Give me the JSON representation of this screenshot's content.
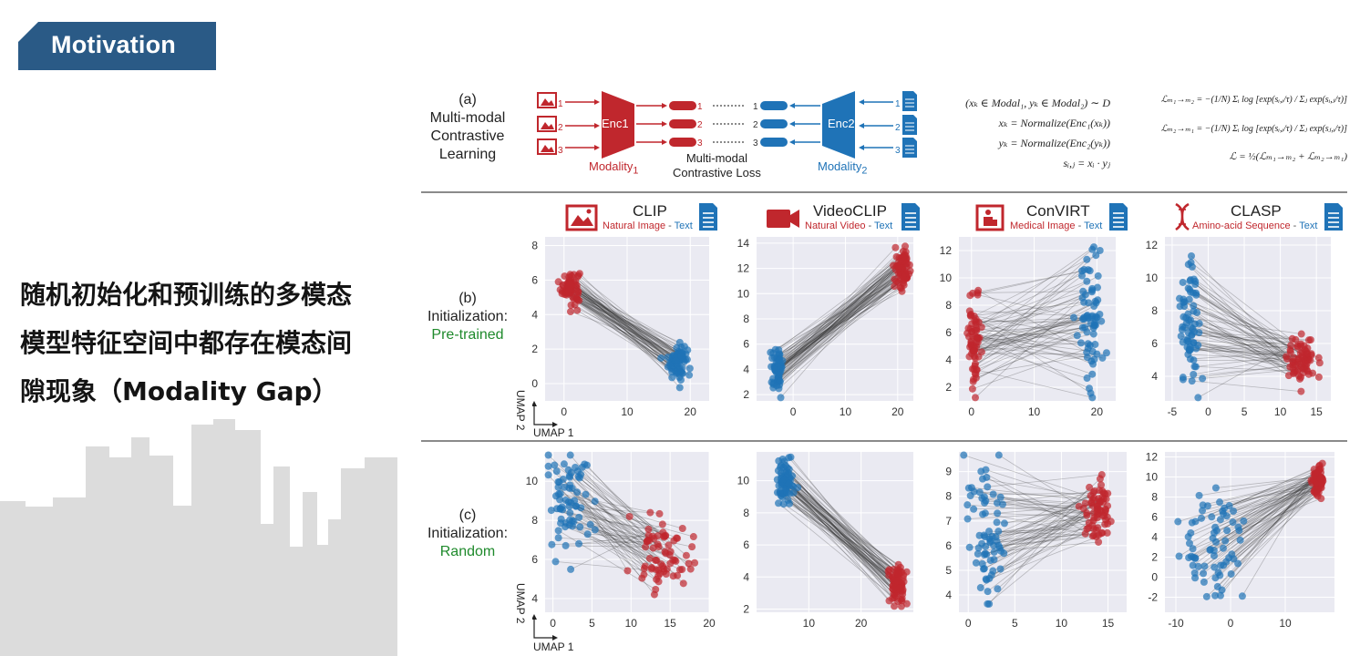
{
  "header": {
    "title": "Motivation"
  },
  "left_text": {
    "lines": [
      "随机初始化和预训练的多模态",
      "模型特征空间中都存在模态间",
      "隙现象（Modality Gap）"
    ]
  },
  "colors": {
    "modality1": "#c0272d",
    "modality2": "#1f73b7",
    "header_bg": "#2a5a86"
  },
  "diagram": {
    "label_a": [
      "(a)",
      "Multi-modal",
      "Contrastive",
      "Learning"
    ],
    "enc1": "Enc1",
    "enc2": "Enc2",
    "modality1": "Modality",
    "modality1_sub": "1",
    "modality2": "Modality",
    "modality2_sub": "2",
    "loss": [
      "Multi-modal",
      "Contrastive Loss"
    ],
    "indices": [
      "1",
      "2",
      "3"
    ],
    "equations_left": [
      "(xₖ ∈ Modal₁, yₖ ∈ Modal₂) ∼ D",
      "xₖ = Normalize(Enc₁(xₖ))",
      "yₖ = Normalize(Enc₂(yₖ))",
      "sᵢ,ⱼ = xᵢ · yⱼ"
    ],
    "equations_right": [
      "ℒₘ₁→ₘ₂ = −(1/N) Σᵢ log [exp(sᵢ,ᵢ/τ) / Σⱼ exp(sᵢ,ⱼ/τ)]",
      "ℒₘ₂→ₘ₁ = −(1/N) Σᵢ log [exp(sᵢ,ᵢ/τ) / Σⱼ exp(sⱼ,ᵢ/τ)]",
      "ℒ = ½(ℒₘ₁→ₘ₂ + ℒₘ₂→ₘ₁)"
    ]
  },
  "methods": [
    {
      "name": "CLIP",
      "modality": "Natural Image",
      "sep": " - ",
      "text": "Text",
      "icon": "image-icon"
    },
    {
      "name": "VideoCLIP",
      "modality": "Natural Video",
      "sep": " - ",
      "text": "Text",
      "icon": "video-camera-icon"
    },
    {
      "name": "ConVIRT",
      "modality": "Medical Image",
      "sep": " - ",
      "text": "Text",
      "icon": "medical-image-icon"
    },
    {
      "name": "CLASP",
      "modality": "Amino-acid Sequence",
      "sep": " - ",
      "text": "Text",
      "icon": "dna-icon"
    }
  ],
  "rows": [
    {
      "label": [
        "(b)",
        "Initialization:"
      ],
      "init": "Pre-trained"
    },
    {
      "label": [
        "(c)",
        "Initialization:"
      ],
      "init": "Random"
    }
  ],
  "axis_labels": {
    "x": "UMAP 1",
    "y": "UMAP 2"
  },
  "chart_data": [
    {
      "type": "scatter",
      "title": "CLIP (Pre-trained)",
      "xlabel": "UMAP 1",
      "ylabel": "UMAP 2",
      "xlim": [
        -3,
        23
      ],
      "ylim": [
        -1,
        8.5
      ],
      "xticks": [
        0,
        10,
        20
      ],
      "yticks": [
        0,
        2,
        4,
        6,
        8
      ],
      "series": [
        {
          "name": "Natural Image",
          "center": [
            1,
            5.6
          ],
          "spread": [
            3,
            2
          ]
        },
        {
          "name": "Text",
          "center": [
            18,
            1.3
          ],
          "spread": [
            3,
            2
          ]
        }
      ]
    },
    {
      "type": "scatter",
      "title": "VideoCLIP (Pre-trained)",
      "xlabel": "UMAP 1",
      "ylabel": "UMAP 2",
      "xlim": [
        -7,
        23
      ],
      "ylim": [
        1.5,
        14.5
      ],
      "xticks": [
        0,
        10,
        20
      ],
      "yticks": [
        2,
        4,
        6,
        8,
        10,
        12,
        14
      ],
      "series": [
        {
          "name": "Natural Video",
          "center": [
            21,
            12
          ],
          "spread": [
            3,
            3
          ]
        },
        {
          "name": "Text",
          "center": [
            -3,
            4
          ],
          "spread": [
            2,
            3
          ]
        }
      ]
    },
    {
      "type": "scatter",
      "title": "ConVIRT (Pre-trained)",
      "xlabel": "UMAP 1",
      "ylabel": "UMAP 2",
      "xlim": [
        -2,
        23
      ],
      "ylim": [
        1,
        13
      ],
      "xticks": [
        0,
        10,
        20
      ],
      "yticks": [
        2,
        4,
        6,
        8,
        10,
        12
      ],
      "series": [
        {
          "name": "Medical Image",
          "center": [
            0.5,
            5.5
          ],
          "spread": [
            2,
            7
          ]
        },
        {
          "name": "Text",
          "center": [
            19,
            7
          ],
          "spread": [
            4,
            10
          ]
        }
      ]
    },
    {
      "type": "scatter",
      "title": "CLASP (Pre-trained)",
      "xlabel": "UMAP 1",
      "ylabel": "UMAP 2",
      "xlim": [
        -6,
        17
      ],
      "ylim": [
        2.5,
        12.5
      ],
      "xticks": [
        -5,
        0,
        5,
        10,
        15
      ],
      "yticks": [
        4,
        6,
        8,
        10,
        12
      ],
      "series": [
        {
          "name": "Amino-acid Sequence",
          "center": [
            13,
            5
          ],
          "spread": [
            4,
            3
          ]
        },
        {
          "name": "Text",
          "center": [
            -2.5,
            7
          ],
          "spread": [
            3,
            9
          ]
        }
      ]
    },
    {
      "type": "scatter",
      "title": "CLIP (Random)",
      "xlabel": "UMAP 1",
      "ylabel": "UMAP 2",
      "xlim": [
        -1,
        20
      ],
      "ylim": [
        3.3,
        11.5
      ],
      "xticks": [
        0,
        5,
        10,
        15,
        20
      ],
      "yticks": [
        4,
        6,
        8,
        10
      ],
      "series": [
        {
          "name": "Natural Image",
          "center": [
            14,
            6.3
          ],
          "spread": [
            8,
            4
          ]
        },
        {
          "name": "Text",
          "center": [
            2,
            9
          ],
          "spread": [
            5,
            5
          ]
        }
      ]
    },
    {
      "type": "scatter",
      "title": "VideoCLIP (Random)",
      "xlabel": "UMAP 1",
      "ylabel": "UMAP 2",
      "xlim": [
        0,
        30
      ],
      "ylim": [
        1.8,
        11.8
      ],
      "xticks": [
        10,
        20
      ],
      "yticks": [
        2,
        4,
        6,
        8,
        10
      ],
      "series": [
        {
          "name": "Natural Video",
          "center": [
            27,
            3.5
          ],
          "spread": [
            3,
            3
          ]
        },
        {
          "name": "Text",
          "center": [
            5.5,
            10
          ],
          "spread": [
            3,
            3
          ]
        }
      ]
    },
    {
      "type": "scatter",
      "title": "ConVIRT (Random)",
      "xlabel": "UMAP 1",
      "ylabel": "UMAP 2",
      "xlim": [
        -1,
        17
      ],
      "ylim": [
        3.3,
        9.8
      ],
      "xticks": [
        0,
        5,
        10,
        15
      ],
      "yticks": [
        4,
        5,
        6,
        7,
        8,
        9
      ],
      "series": [
        {
          "name": "Medical Image",
          "center": [
            14,
            7.5
          ],
          "spread": [
            3,
            3
          ]
        },
        {
          "name": "Text",
          "center": [
            2,
            6.5
          ],
          "spread": [
            5,
            6
          ]
        }
      ]
    },
    {
      "type": "scatter",
      "title": "CLASP (Random)",
      "xlabel": "UMAP 1",
      "ylabel": "UMAP 2",
      "xlim": [
        -12,
        19
      ],
      "ylim": [
        -3.5,
        12.5
      ],
      "xticks": [
        -10,
        0,
        10
      ],
      "yticks": [
        -2,
        0,
        2,
        4,
        6,
        8,
        10,
        12
      ],
      "series": [
        {
          "name": "Amino-acid Sequence",
          "center": [
            16,
            9.5
          ],
          "spread": [
            2,
            3
          ]
        },
        {
          "name": "Text",
          "center": [
            -3,
            3
          ],
          "spread": [
            14,
            12
          ]
        }
      ]
    }
  ]
}
